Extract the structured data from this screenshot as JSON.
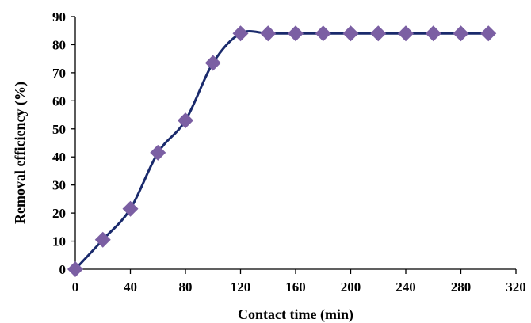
{
  "chart_data": {
    "type": "line",
    "title": "",
    "xlabel": "Contact time (min)",
    "ylabel": "Removal efficiency (%)",
    "xlim": [
      0,
      320
    ],
    "ylim": [
      0,
      90
    ],
    "xticks": [
      0,
      40,
      80,
      120,
      160,
      200,
      240,
      280,
      320
    ],
    "yticks": [
      0,
      10,
      20,
      30,
      40,
      50,
      60,
      70,
      80,
      90
    ],
    "grid": false,
    "legend": "none",
    "series": [
      {
        "line_color": "#1a2a6c",
        "marker": "diamond",
        "marker_color": "#7b5fa3",
        "smooth": true,
        "x": [
          0,
          20,
          40,
          60,
          80,
          100,
          120,
          140,
          160,
          180,
          200,
          220,
          240,
          260,
          280,
          300
        ],
        "y": [
          0,
          10.5,
          21.5,
          41.5,
          53,
          73.5,
          84,
          84,
          84,
          84,
          84,
          84,
          84,
          84,
          84,
          84
        ]
      }
    ]
  }
}
